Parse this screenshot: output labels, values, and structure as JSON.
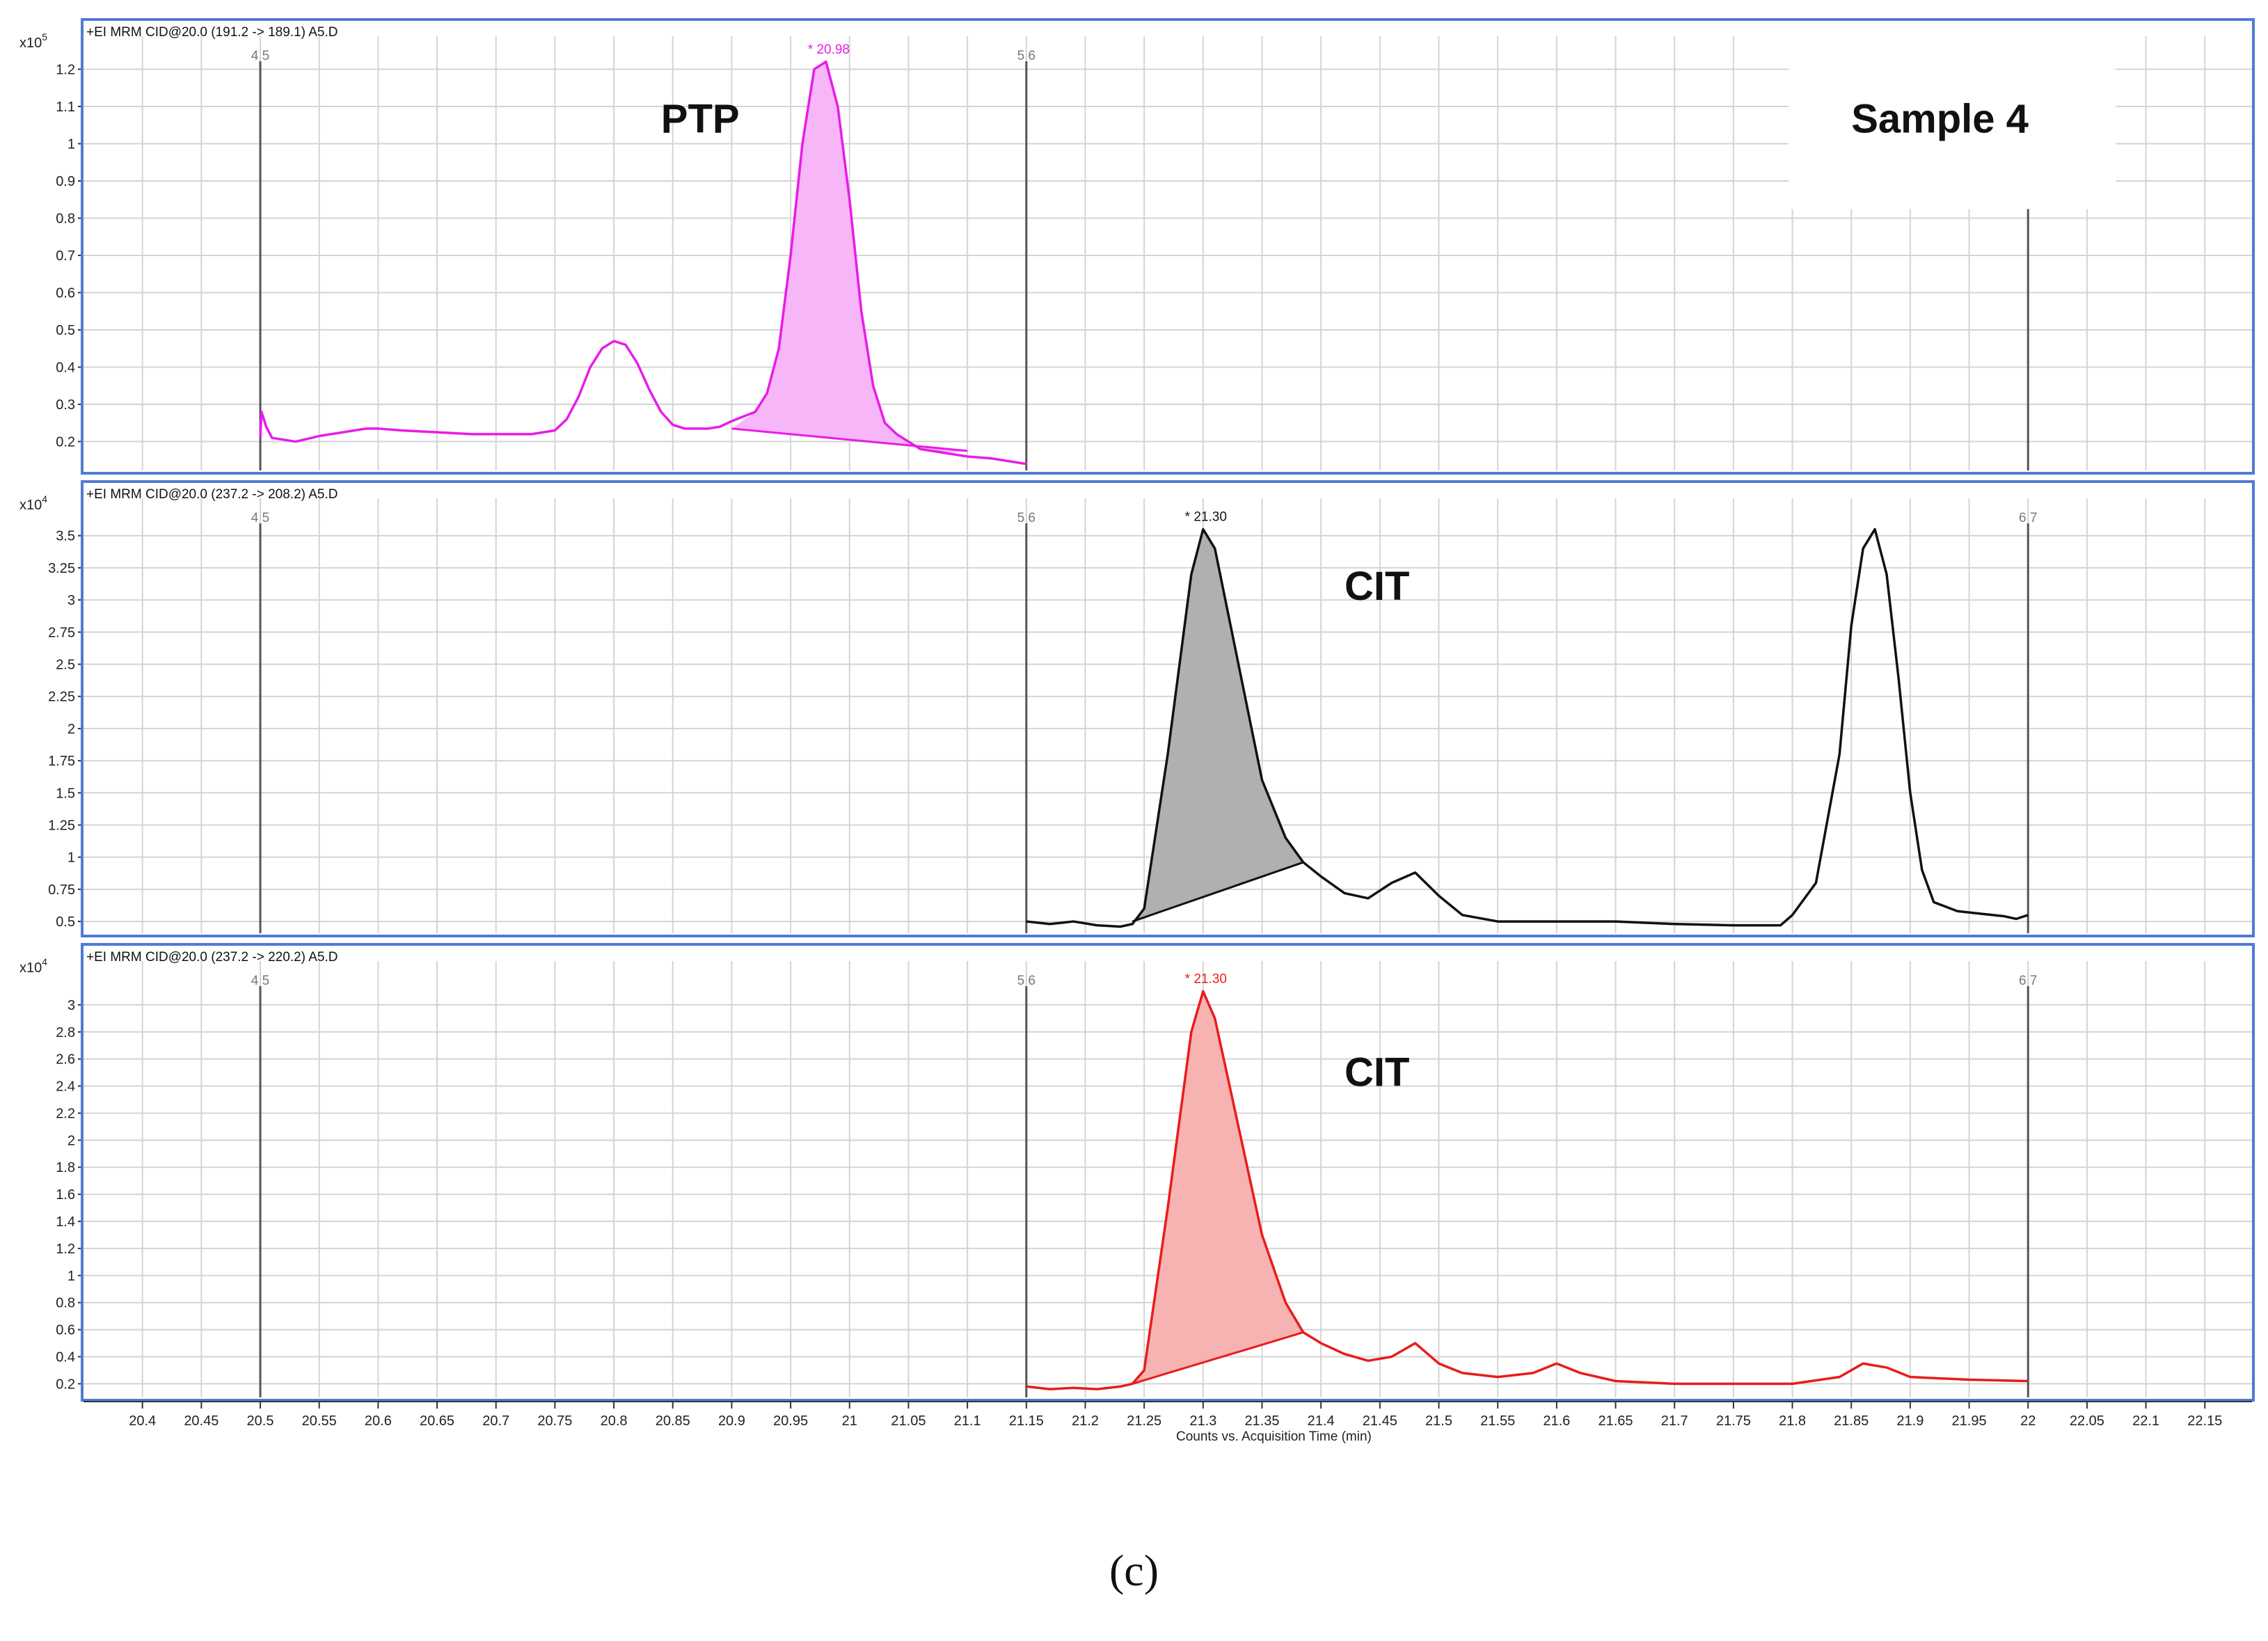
{
  "chart_data": {
    "type": "line",
    "x_axis": {
      "label": "Counts vs. Acquisition Time (min)",
      "range": [
        20.35,
        22.19
      ],
      "ticks": [
        "20.4",
        "20.45",
        "20.5",
        "20.55",
        "20.6",
        "20.65",
        "20.7",
        "20.75",
        "20.8",
        "20.85",
        "20.9",
        "20.95",
        "21",
        "21.05",
        "21.1",
        "21.15",
        "21.2",
        "21.25",
        "21.3",
        "21.35",
        "21.4",
        "21.45",
        "21.5",
        "21.55",
        "21.6",
        "21.65",
        "21.7",
        "21.75",
        "21.8",
        "21.85",
        "21.9",
        "21.95",
        "22",
        "22.05",
        "22.1",
        "22.15"
      ]
    },
    "segment_markers": [
      {
        "x": 20.5,
        "label": "4 5"
      },
      {
        "x": 21.15,
        "label": "5 6"
      },
      {
        "x": 22.0,
        "label": "6 7"
      }
    ],
    "panels": [
      {
        "header": "+EI MRM CID@20.0 (191.2 -> 189.1) A5.D",
        "scale_exp": "x10",
        "scale_power": "5",
        "color": "#e81ce8",
        "fill": "#f7b6f7",
        "ylim": [
          0.13,
          1.27
        ],
        "y_ticks": [
          "0.2",
          "0.3",
          "0.4",
          "0.5",
          "0.6",
          "0.7",
          "0.8",
          "0.9",
          "1",
          "1.1",
          "1.2"
        ],
        "peak_label": "* 20.98",
        "peak_x": 20.98,
        "peak_y": 1.22,
        "annotations": [
          {
            "text": "PTP",
            "x": 20.84,
            "y": 1.03
          },
          {
            "text": "Sample 4",
            "x": 21.85,
            "y": 1.03
          }
        ],
        "integration": {
          "start_x": 20.9,
          "start_y": 0.235,
          "end_x": 21.1,
          "end_y": 0.175
        },
        "series": {
          "x": [
            20.5,
            20.501,
            20.505,
            20.51,
            20.53,
            20.55,
            20.57,
            20.59,
            20.6,
            20.62,
            20.65,
            20.68,
            20.7,
            20.73,
            20.75,
            20.76,
            20.77,
            20.78,
            20.79,
            20.8,
            20.81,
            20.82,
            20.83,
            20.84,
            20.85,
            20.86,
            20.87,
            20.88,
            20.89,
            20.9,
            20.92,
            20.93,
            20.94,
            20.95,
            20.96,
            20.97,
            20.98,
            20.99,
            21.0,
            21.01,
            21.02,
            21.03,
            21.04,
            21.05,
            21.06,
            21.08,
            21.1,
            21.12,
            21.15
          ],
          "y": [
            0.21,
            0.28,
            0.24,
            0.21,
            0.2,
            0.215,
            0.225,
            0.235,
            0.235,
            0.23,
            0.225,
            0.22,
            0.22,
            0.22,
            0.23,
            0.26,
            0.32,
            0.4,
            0.45,
            0.47,
            0.46,
            0.41,
            0.34,
            0.28,
            0.245,
            0.235,
            0.235,
            0.235,
            0.24,
            0.255,
            0.28,
            0.33,
            0.45,
            0.7,
            1.0,
            1.2,
            1.22,
            1.1,
            0.85,
            0.55,
            0.35,
            0.25,
            0.22,
            0.2,
            0.18,
            0.17,
            0.16,
            0.155,
            0.14
          ]
        }
      },
      {
        "header": "+EI MRM CID@20.0 (237.2 -> 208.2) A5.D",
        "scale_exp": "x10",
        "scale_power": "4",
        "color": "#111111",
        "fill": "#b0b0b0",
        "ylim": [
          0.43,
          3.65
        ],
        "y_ticks": [
          "0.5",
          "0.75",
          "1",
          "1.25",
          "1.5",
          "1.75",
          "2",
          "2.25",
          "2.5",
          "2.75",
          "3",
          "3.25",
          "3.5"
        ],
        "peak_label": "* 21.30",
        "peak_x": 21.3,
        "peak_y": 3.55,
        "annotations": [
          {
            "text": "CIT",
            "x": 21.42,
            "y": 3.0
          }
        ],
        "integration": {
          "start_x": 21.24,
          "start_y": 0.5,
          "end_x": 21.385,
          "end_y": 0.96
        },
        "series": {
          "x": [
            21.15,
            21.17,
            21.19,
            21.21,
            21.23,
            21.24,
            21.25,
            21.27,
            21.29,
            21.3,
            21.31,
            21.33,
            21.35,
            21.37,
            21.385,
            21.4,
            21.42,
            21.44,
            21.46,
            21.48,
            21.5,
            21.52,
            21.55,
            21.6,
            21.65,
            21.7,
            21.75,
            21.79,
            21.8,
            21.82,
            21.84,
            21.85,
            21.86,
            21.87,
            21.88,
            21.89,
            21.9,
            21.91,
            21.92,
            21.94,
            21.96,
            21.98,
            21.99,
            22.0
          ],
          "y": [
            0.5,
            0.48,
            0.5,
            0.47,
            0.46,
            0.48,
            0.6,
            1.8,
            3.2,
            3.55,
            3.4,
            2.5,
            1.6,
            1.15,
            0.96,
            0.85,
            0.72,
            0.68,
            0.8,
            0.88,
            0.7,
            0.55,
            0.5,
            0.5,
            0.5,
            0.48,
            0.47,
            0.47,
            0.55,
            0.8,
            1.8,
            2.8,
            3.4,
            3.55,
            3.2,
            2.4,
            1.5,
            0.9,
            0.65,
            0.58,
            0.56,
            0.54,
            0.52,
            0.55
          ]
        }
      },
      {
        "header": "+EI MRM CID@20.0 (237.2 -> 220.2) A5.D",
        "scale_exp": "x10",
        "scale_power": "4",
        "color": "#e81c1c",
        "fill": "#f7b2b2",
        "ylim": [
          0.13,
          3.2
        ],
        "y_ticks": [
          "0.2",
          "0.4",
          "0.6",
          "0.8",
          "1",
          "1.2",
          "1.4",
          "1.6",
          "1.8",
          "2",
          "2.2",
          "2.4",
          "2.6",
          "2.8",
          "3"
        ],
        "peak_label": "* 21.30",
        "peak_x": 21.3,
        "peak_y": 3.1,
        "annotations": [
          {
            "text": "CIT",
            "x": 21.42,
            "y": 2.4
          }
        ],
        "integration": {
          "start_x": 21.24,
          "start_y": 0.2,
          "end_x": 21.385,
          "end_y": 0.58
        },
        "series": {
          "x": [
            21.15,
            21.17,
            21.19,
            21.21,
            21.23,
            21.24,
            21.25,
            21.27,
            21.29,
            21.3,
            21.31,
            21.33,
            21.35,
            21.37,
            21.385,
            21.4,
            21.42,
            21.44,
            21.46,
            21.48,
            21.5,
            21.52,
            21.55,
            21.58,
            21.6,
            21.62,
            21.65,
            21.7,
            21.75,
            21.8,
            21.84,
            21.86,
            21.88,
            21.9,
            21.95,
            22.0
          ],
          "y": [
            0.18,
            0.16,
            0.17,
            0.16,
            0.18,
            0.2,
            0.3,
            1.5,
            2.8,
            3.1,
            2.9,
            2.1,
            1.3,
            0.8,
            0.58,
            0.5,
            0.42,
            0.37,
            0.4,
            0.5,
            0.35,
            0.28,
            0.25,
            0.28,
            0.35,
            0.28,
            0.22,
            0.2,
            0.2,
            0.2,
            0.25,
            0.35,
            0.32,
            0.25,
            0.23,
            0.22
          ]
        }
      }
    ]
  },
  "caption": "(c)"
}
